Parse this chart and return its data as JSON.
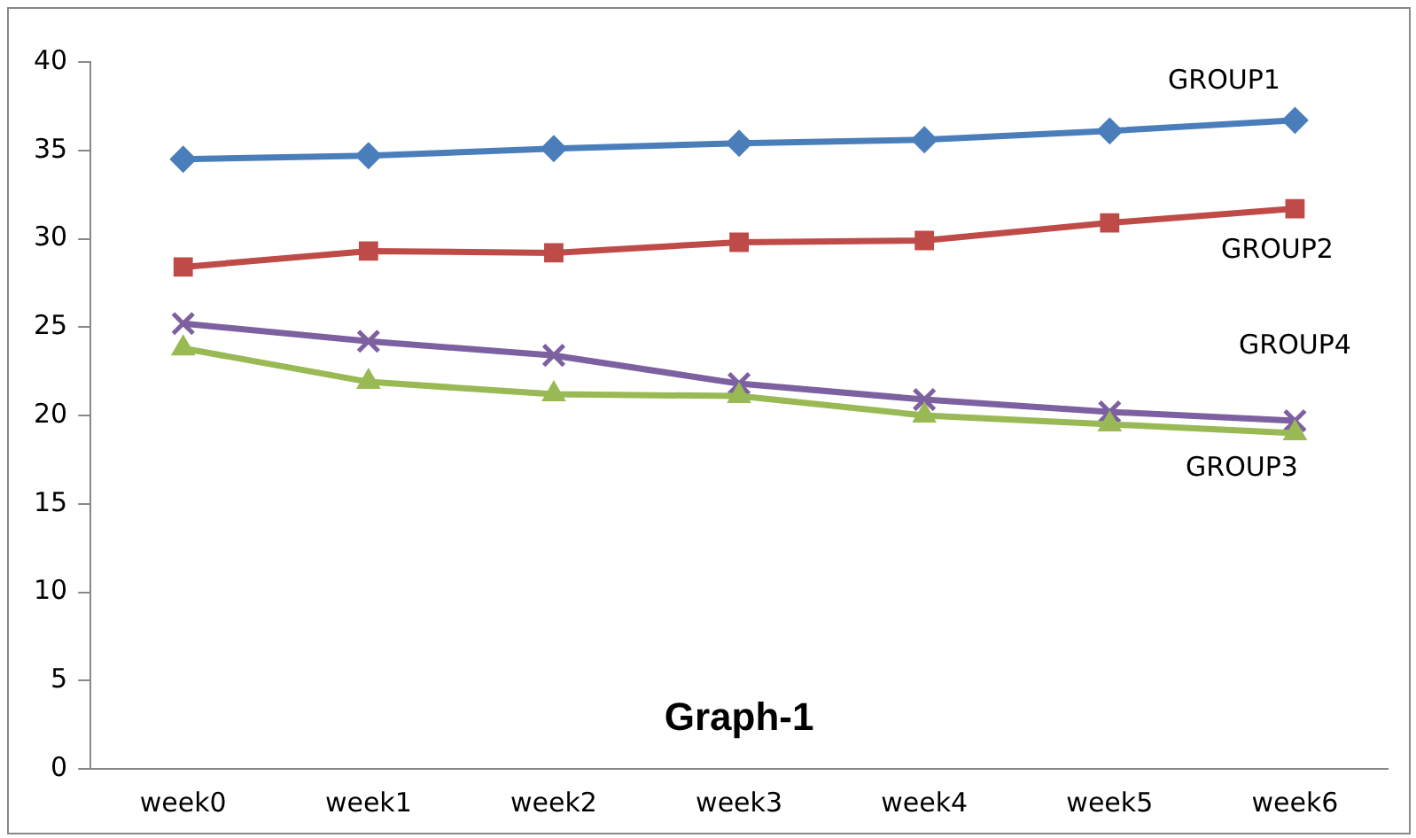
{
  "chart_data": {
    "type": "line",
    "title": "Graph-1",
    "categories": [
      "week0",
      "week1",
      "week2",
      "week3",
      "week4",
      "week5",
      "week6"
    ],
    "series": [
      {
        "name": "GROUP1",
        "color": "#4a7ebb",
        "marker": "diamond",
        "values": [
          34.5,
          34.7,
          35.1,
          35.4,
          35.6,
          36.1,
          36.7
        ]
      },
      {
        "name": "GROUP2",
        "color": "#be4b48",
        "marker": "square",
        "values": [
          28.4,
          29.3,
          29.2,
          29.8,
          29.9,
          30.9,
          31.7
        ]
      },
      {
        "name": "GROUP3",
        "color": "#98b954",
        "marker": "triangle",
        "values": [
          23.8,
          21.9,
          21.2,
          21.1,
          20.0,
          19.5,
          19.0
        ]
      },
      {
        "name": "GROUP4",
        "color": "#7d60a0",
        "marker": "cross",
        "values": [
          25.2,
          24.2,
          23.4,
          21.8,
          20.9,
          20.2,
          19.7
        ]
      }
    ],
    "ylim": [
      0,
      40
    ],
    "yticks": [
      0,
      5,
      10,
      15,
      20,
      25,
      30,
      35,
      40
    ],
    "grid": false,
    "legend": false,
    "line_style": "solid"
  }
}
